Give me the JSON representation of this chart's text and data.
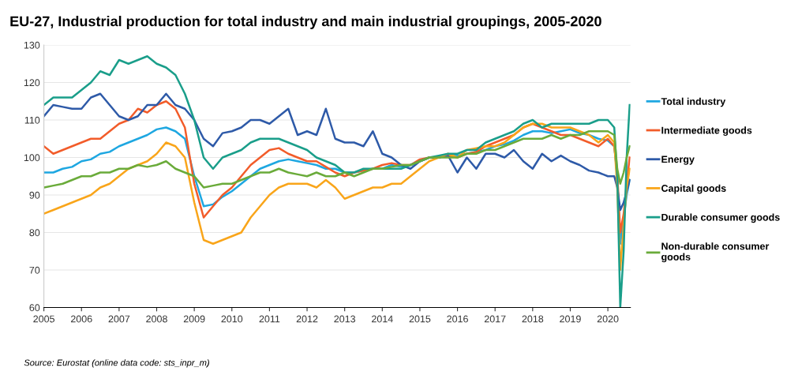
{
  "chart_data": {
    "type": "line",
    "title": "EU-27, Industrial production for total industry and main industrial groupings, 2005-2020",
    "x": [
      2005.0,
      2005.25,
      2005.5,
      2005.75,
      2006.0,
      2006.25,
      2006.5,
      2006.75,
      2007.0,
      2007.25,
      2007.5,
      2007.75,
      2008.0,
      2008.25,
      2008.5,
      2008.75,
      2009.0,
      2009.25,
      2009.5,
      2009.75,
      2010.0,
      2010.25,
      2010.5,
      2010.75,
      2011.0,
      2011.25,
      2011.5,
      2011.75,
      2012.0,
      2012.25,
      2012.5,
      2012.75,
      2013.0,
      2013.25,
      2013.5,
      2013.75,
      2014.0,
      2014.25,
      2014.5,
      2014.75,
      2015.0,
      2015.25,
      2015.5,
      2015.75,
      2016.0,
      2016.25,
      2016.5,
      2016.75,
      2017.0,
      2017.25,
      2017.5,
      2017.75,
      2018.0,
      2018.25,
      2018.5,
      2018.75,
      2019.0,
      2019.25,
      2019.5,
      2019.75,
      2020.0,
      2020.17,
      2020.25,
      2020.33,
      2020.42,
      2020.5,
      2020.58
    ],
    "series": [
      {
        "name": "Total industry",
        "color": "#1ea7e1",
        "values": [
          96,
          96,
          97,
          97.5,
          99,
          99.5,
          101,
          101.5,
          103,
          104,
          105,
          106,
          107.5,
          108,
          107,
          105,
          95,
          87,
          87.5,
          89.5,
          91,
          93,
          95,
          97,
          98,
          99,
          99.5,
          99,
          98.5,
          98,
          97,
          97,
          96,
          96,
          96.5,
          97,
          97,
          98,
          97.5,
          98,
          99,
          100,
          100,
          100.5,
          100.5,
          101,
          101.5,
          102,
          103,
          103.5,
          104.5,
          106,
          107,
          107,
          106.5,
          107,
          107.5,
          106.5,
          106,
          105,
          104.5,
          103,
          95,
          77,
          84,
          90,
          94
        ]
      },
      {
        "name": "Intermediate goods",
        "color": "#f25c2a",
        "values": [
          103,
          101,
          102,
          103,
          104,
          105,
          105,
          107,
          109,
          110,
          113,
          112,
          114,
          115,
          113,
          108,
          93,
          84,
          87,
          90,
          92,
          95,
          98,
          100,
          102,
          102.5,
          101,
          100,
          99,
          99,
          97.5,
          96,
          95,
          96,
          96.5,
          97,
          98,
          98.5,
          98,
          98,
          99.5,
          100,
          100,
          100.5,
          100,
          101,
          101.5,
          103,
          104,
          105,
          106,
          108,
          109,
          108,
          107,
          106,
          106,
          105,
          104,
          103,
          105,
          103,
          96,
          80,
          85,
          93,
          100
        ]
      },
      {
        "name": "Energy",
        "color": "#2e5aa8",
        "values": [
          111,
          114,
          113.5,
          113,
          113,
          116,
          117,
          114,
          111,
          110,
          111,
          114,
          114,
          117,
          114,
          113,
          110,
          105,
          103,
          106.5,
          107,
          108,
          110,
          110,
          109,
          111,
          113,
          106,
          107,
          106,
          113,
          105,
          104,
          104,
          103,
          107,
          101,
          100,
          98,
          97,
          99,
          100,
          100,
          100.5,
          96,
          100,
          97,
          101,
          101,
          100,
          102,
          99,
          97,
          101,
          99,
          100.5,
          99,
          98,
          96.5,
          96,
          95,
          95,
          92,
          86,
          88,
          91,
          94
        ]
      },
      {
        "name": "Capital goods",
        "color": "#f9a51a",
        "values": [
          85,
          86,
          87,
          88,
          89,
          90,
          92,
          93,
          95,
          97,
          98,
          99,
          101,
          104,
          103,
          100,
          88,
          78,
          77,
          78,
          79,
          80,
          84,
          87,
          90,
          92,
          93,
          93,
          93,
          92,
          94,
          92,
          89,
          90,
          91,
          92,
          92,
          93,
          93,
          95,
          97,
          99,
          100,
          101,
          100,
          102,
          102.5,
          103,
          103,
          104,
          106,
          108,
          109,
          109,
          108,
          108,
          108,
          107,
          106,
          104,
          106,
          104,
          92,
          70,
          82,
          92,
          97
        ]
      },
      {
        "name": "Durable consumer goods",
        "color": "#1a9e8a",
        "values": [
          114,
          116,
          116,
          116,
          118,
          120,
          123,
          122,
          126,
          125,
          126,
          127,
          125,
          124,
          122,
          117,
          110,
          100,
          97,
          100,
          101,
          102,
          104,
          105,
          105,
          105,
          104,
          103,
          102,
          100,
          99,
          98,
          96,
          96,
          97,
          97,
          97,
          97,
          97,
          98,
          99,
          100,
          100.5,
          101,
          101,
          102,
          102,
          104,
          105,
          106,
          107,
          109,
          110,
          108,
          109,
          109,
          109,
          109,
          109,
          110,
          110,
          108,
          95,
          60,
          75,
          100,
          114
        ]
      },
      {
        "name": "Non-durable consumer\ngoods",
        "color": "#6aab3a",
        "values": [
          92,
          92.5,
          93,
          94,
          95,
          95,
          96,
          96,
          97,
          97,
          98,
          97.5,
          98,
          99,
          97,
          96,
          95,
          92,
          92.5,
          93,
          93,
          94,
          95,
          96,
          96,
          97,
          96,
          95.5,
          95,
          96,
          95,
          95,
          96,
          95,
          96,
          97,
          97,
          97.5,
          98,
          98,
          99,
          100,
          100,
          100,
          100,
          101,
          101,
          102,
          102,
          103,
          104,
          105,
          105,
          105,
          106,
          105,
          106,
          106,
          107,
          107,
          107,
          106,
          97,
          93,
          96,
          100,
          103
        ]
      }
    ],
    "xlim": [
      2005,
      2020.6
    ],
    "xticks": [
      2005,
      2006,
      2007,
      2008,
      2009,
      2010,
      2011,
      2012,
      2013,
      2014,
      2015,
      2016,
      2017,
      2018,
      2019,
      2020
    ],
    "ylim": [
      60,
      130
    ],
    "yticks": [
      60,
      70,
      80,
      90,
      100,
      110,
      120,
      130
    ],
    "grid": "y",
    "legend": "right",
    "annotations": [
      "Source: Eurostat (online data code: sts_inpr_m)"
    ]
  }
}
